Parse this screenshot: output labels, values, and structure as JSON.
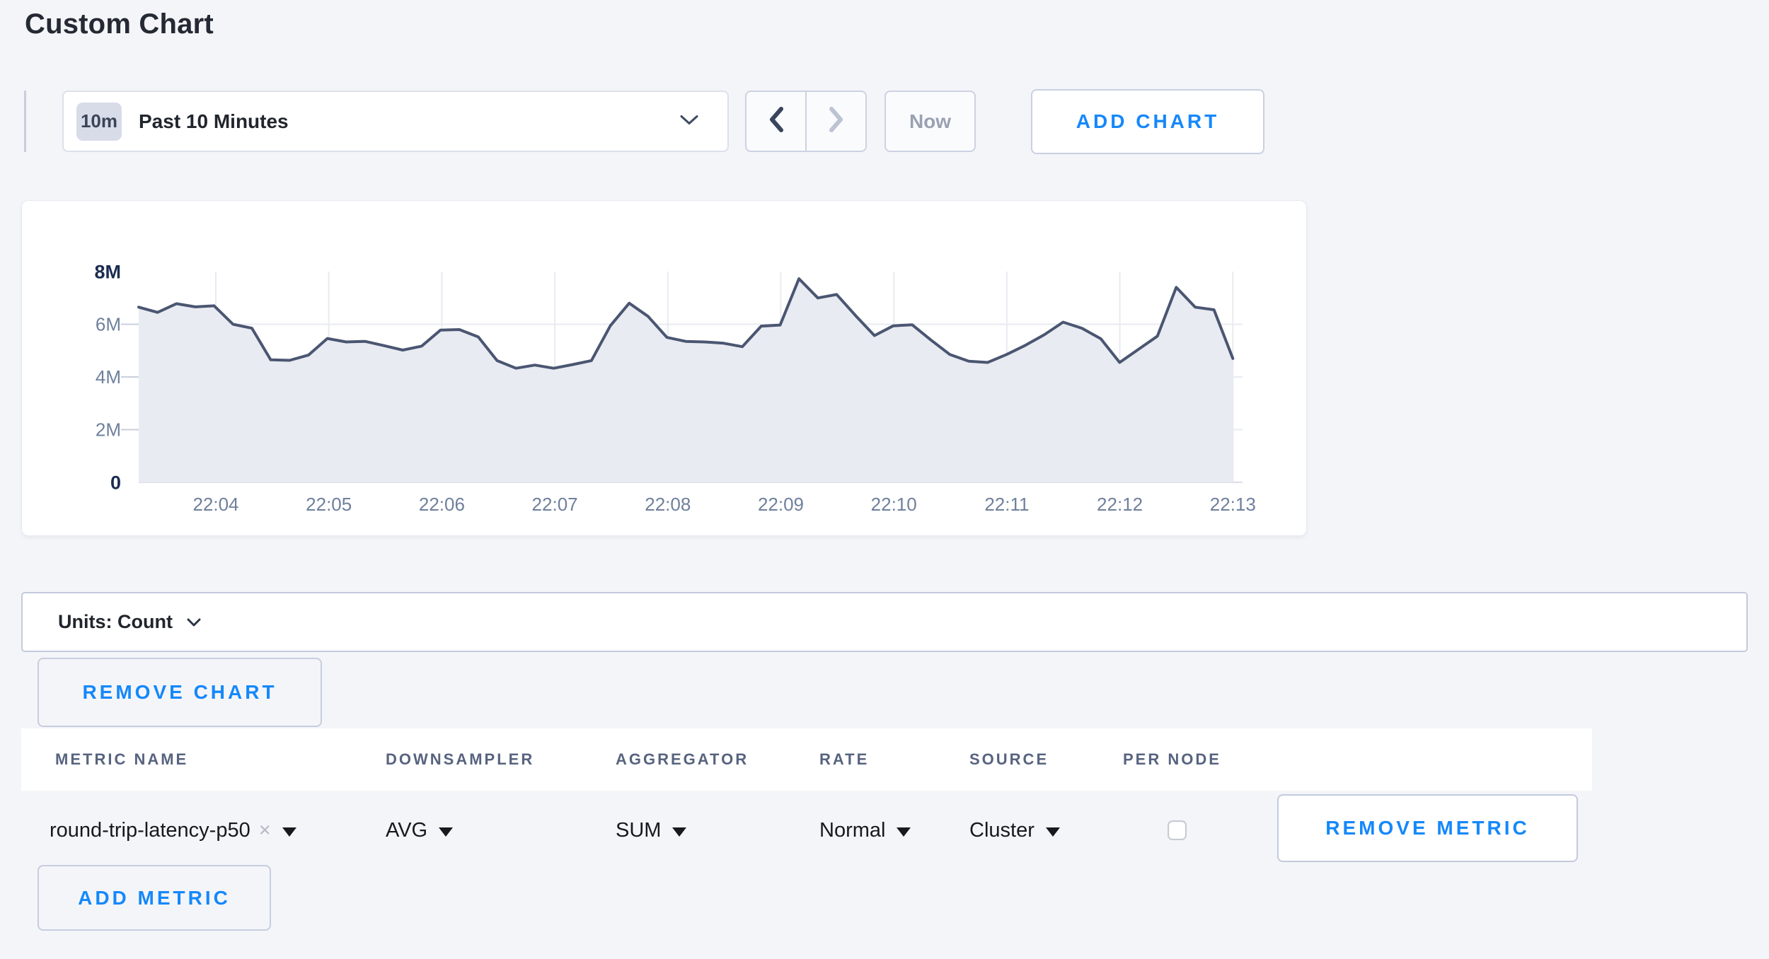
{
  "page": {
    "title": "Custom Chart",
    "background": "#f4f5f9",
    "accent": "#1588fa"
  },
  "toolbar": {
    "time_range": {
      "badge": "10m",
      "label": "Past 10 Minutes"
    },
    "now_label": "Now",
    "add_chart_label": "ADD CHART"
  },
  "chart_data": {
    "type": "area",
    "title": "",
    "x_ticks": [
      "22:04",
      "22:05",
      "22:06",
      "22:07",
      "22:08",
      "22:09",
      "22:10",
      "22:11",
      "22:12",
      "22:13"
    ],
    "x_start": "22:03:30",
    "x_interval_seconds": 10,
    "y_tick_labels": [
      "0",
      "2M",
      "4M",
      "6M",
      "8M"
    ],
    "y_tick_values": [
      0,
      2,
      4,
      6,
      8
    ],
    "ylim_millions": [
      0,
      8
    ],
    "unit": "Count",
    "grid": true,
    "legend": "none",
    "line_color": "#4a5671",
    "fill_color": "#e9ebf2",
    "series": [
      {
        "name": "round-trip-latency-p50",
        "values_millions": [
          6.65,
          6.45,
          6.78,
          6.66,
          6.7,
          6.0,
          5.85,
          4.65,
          4.63,
          4.83,
          5.46,
          5.33,
          5.35,
          5.19,
          5.02,
          5.17,
          5.78,
          5.8,
          5.52,
          4.62,
          4.33,
          4.45,
          4.33,
          4.47,
          4.62,
          5.94,
          6.8,
          6.3,
          5.5,
          5.35,
          5.33,
          5.28,
          5.15,
          5.93,
          5.97,
          7.73,
          7.0,
          7.13,
          6.33,
          5.57,
          5.94,
          5.98,
          5.4,
          4.85,
          4.6,
          4.55,
          4.85,
          5.2,
          5.6,
          6.08,
          5.85,
          5.45,
          4.55,
          5.05,
          5.55,
          7.4,
          6.65,
          6.55,
          4.7
        ]
      }
    ]
  },
  "units_bar": {
    "label": "Units: Count"
  },
  "chart_actions": {
    "remove_chart_label": "REMOVE CHART"
  },
  "metrics_table": {
    "columns": [
      "METRIC NAME",
      "DOWNSAMPLER",
      "AGGREGATOR",
      "RATE",
      "SOURCE",
      "PER NODE"
    ],
    "rows": [
      {
        "metric_name": "round-trip-latency-p50",
        "clear_icon": "×",
        "downsampler": "AVG",
        "aggregator": "SUM",
        "rate": "Normal",
        "source": "Cluster",
        "per_node_checked": false,
        "remove_label": "REMOVE METRIC"
      }
    ],
    "add_metric_label": "ADD METRIC"
  }
}
